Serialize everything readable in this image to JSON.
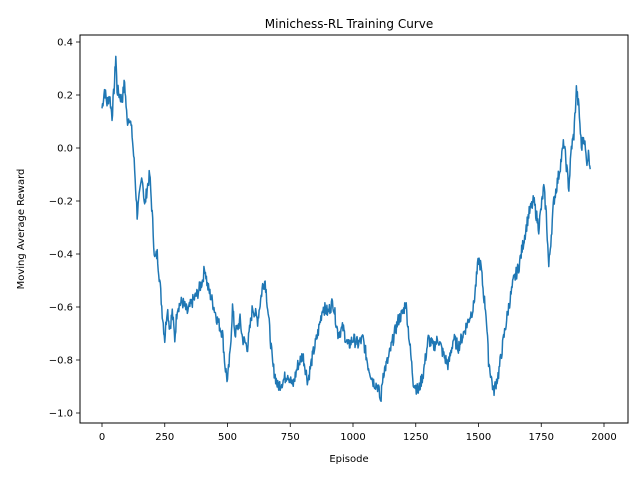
{
  "chart_data": {
    "type": "line",
    "title": "Minichess-RL Training Curve",
    "xlabel": "Episode",
    "ylabel": "Moving Average Reward",
    "xlim": [
      -80,
      2025
    ],
    "ylim": [
      -1.04,
      0.44
    ],
    "grid": false,
    "legend": null,
    "x_ticks": [
      0,
      250,
      500,
      750,
      1000,
      1250,
      1500,
      1750,
      2000
    ],
    "x_tick_labels": [
      "0",
      "250",
      "500",
      "750",
      "1000",
      "1250",
      "1500",
      "1750",
      "2000"
    ],
    "y_ticks": [
      0.4,
      0.2,
      0.0,
      -0.2,
      -0.4,
      -0.6,
      -0.8,
      -1.0
    ],
    "y_tick_labels": [
      "0.4",
      "0.2",
      "0.0",
      "−0.2",
      "−0.4",
      "−0.6",
      "−0.8",
      "−1.0"
    ],
    "series": [
      {
        "name": "Moving Average Reward",
        "color": "#1f77b4",
        "x": [
          0,
          10,
          20,
          30,
          40,
          50,
          55,
          60,
          70,
          80,
          90,
          100,
          110,
          120,
          130,
          140,
          150,
          160,
          170,
          180,
          190,
          200,
          210,
          220,
          230,
          240,
          250,
          260,
          270,
          280,
          290,
          300,
          320,
          340,
          360,
          380,
          400,
          410,
          420,
          440,
          460,
          480,
          490,
          500,
          510,
          520,
          530,
          540,
          550,
          560,
          580,
          600,
          620,
          640,
          650,
          660,
          680,
          700,
          720,
          740,
          760,
          780,
          800,
          820,
          840,
          860,
          880,
          900,
          920,
          940,
          960,
          980,
          1000,
          1020,
          1040,
          1060,
          1080,
          1100,
          1110,
          1120,
          1140,
          1160,
          1180,
          1200,
          1210,
          1220,
          1240,
          1260,
          1280,
          1300,
          1320,
          1340,
          1360,
          1380,
          1400,
          1420,
          1440,
          1460,
          1480,
          1500,
          1510,
          1520,
          1530,
          1540,
          1560,
          1580,
          1600,
          1620,
          1640,
          1660,
          1680,
          1700,
          1720,
          1740,
          1760,
          1770,
          1780,
          1800,
          1820,
          1840,
          1860,
          1870,
          1880,
          1890,
          1900,
          1910,
          1920,
          1930,
          1940,
          1945
        ],
        "values": [
          0.15,
          0.22,
          0.17,
          0.2,
          0.12,
          0.25,
          0.35,
          0.22,
          0.2,
          0.18,
          0.25,
          0.1,
          0.12,
          0.05,
          -0.08,
          -0.25,
          -0.18,
          -0.1,
          -0.22,
          -0.15,
          -0.1,
          -0.25,
          -0.42,
          -0.4,
          -0.5,
          -0.62,
          -0.72,
          -0.6,
          -0.68,
          -0.62,
          -0.72,
          -0.6,
          -0.58,
          -0.62,
          -0.58,
          -0.55,
          -0.5,
          -0.45,
          -0.52,
          -0.58,
          -0.65,
          -0.7,
          -0.82,
          -0.88,
          -0.78,
          -0.6,
          -0.7,
          -0.68,
          -0.65,
          -0.72,
          -0.75,
          -0.6,
          -0.65,
          -0.52,
          -0.5,
          -0.6,
          -0.82,
          -0.9,
          -0.88,
          -0.85,
          -0.9,
          -0.82,
          -0.78,
          -0.88,
          -0.78,
          -0.7,
          -0.6,
          -0.62,
          -0.58,
          -0.7,
          -0.68,
          -0.75,
          -0.72,
          -0.74,
          -0.72,
          -0.82,
          -0.88,
          -0.9,
          -0.96,
          -0.85,
          -0.8,
          -0.72,
          -0.65,
          -0.62,
          -0.58,
          -0.68,
          -0.88,
          -0.92,
          -0.85,
          -0.72,
          -0.75,
          -0.72,
          -0.78,
          -0.82,
          -0.72,
          -0.75,
          -0.7,
          -0.65,
          -0.6,
          -0.42,
          -0.45,
          -0.55,
          -0.62,
          -0.8,
          -0.92,
          -0.85,
          -0.72,
          -0.6,
          -0.5,
          -0.45,
          -0.35,
          -0.25,
          -0.2,
          -0.3,
          -0.15,
          -0.25,
          -0.45,
          -0.2,
          -0.1,
          0.02,
          -0.15,
          0.0,
          0.05,
          0.22,
          0.15,
          0.0,
          0.05,
          -0.05,
          -0.02,
          -0.08
        ]
      }
    ]
  }
}
